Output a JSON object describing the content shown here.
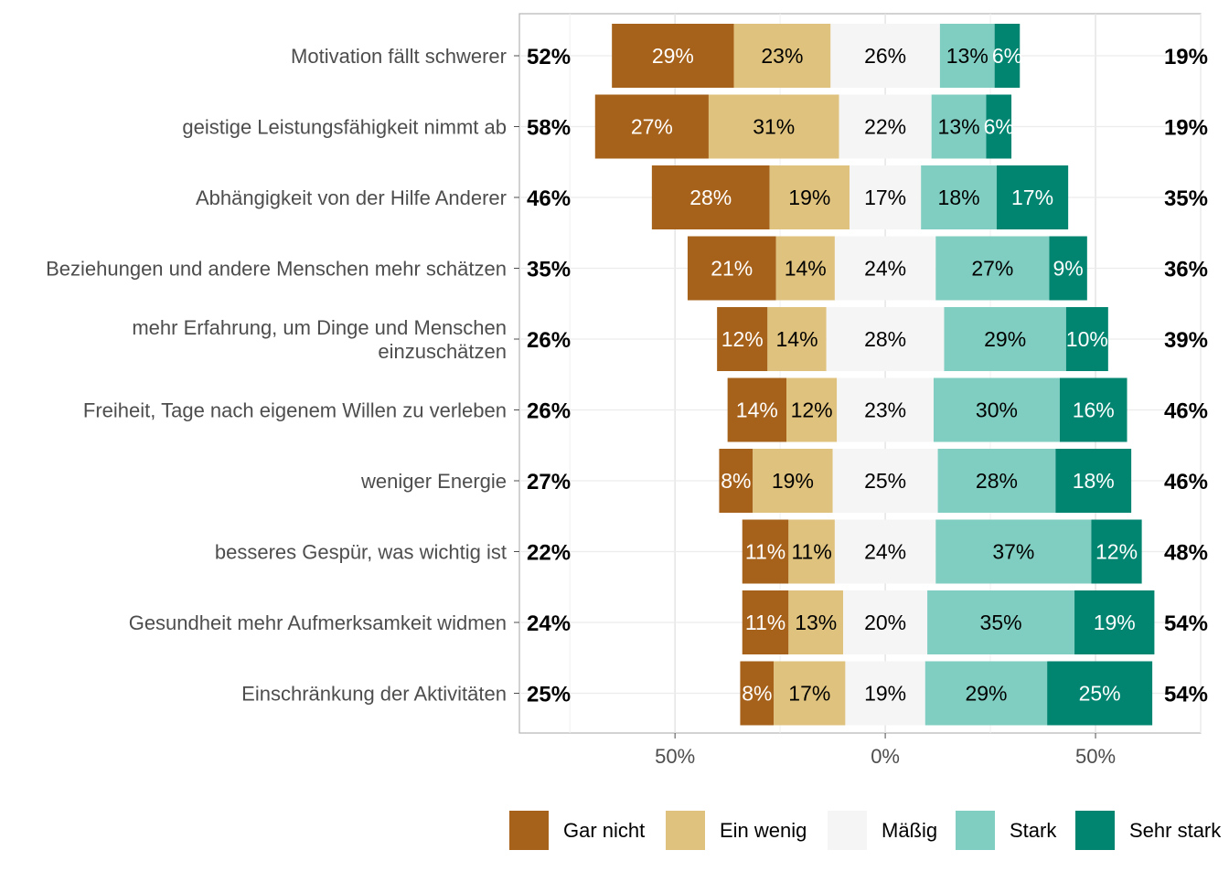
{
  "chart_data": {
    "type": "bar",
    "orientation": "horizontal-diverging-stacked",
    "xlim": [
      -87,
      75
    ],
    "x_ticks": [
      -50,
      0,
      50
    ],
    "x_tick_labels": [
      "50%",
      "0%",
      "50%"
    ],
    "grid": true,
    "legend_position": "bottom",
    "series": [
      {
        "name": "Gar nicht",
        "color": "#A6611A",
        "values": [
          29,
          27,
          28,
          21,
          12,
          14,
          8,
          11,
          11,
          8
        ]
      },
      {
        "name": "Ein wenig",
        "color": "#DFC27D",
        "values": [
          23,
          31,
          19,
          14,
          14,
          12,
          19,
          11,
          13,
          17
        ]
      },
      {
        "name": "Mäßig",
        "color": "#F5F5F5",
        "values": [
          26,
          22,
          17,
          24,
          28,
          23,
          25,
          24,
          20,
          19
        ]
      },
      {
        "name": "Stark",
        "color": "#80CDC1",
        "values": [
          13,
          13,
          18,
          27,
          29,
          30,
          28,
          37,
          35,
          29
        ]
      },
      {
        "name": "Sehr stark",
        "color": "#018571",
        "values": [
          6,
          6,
          17,
          9,
          10,
          16,
          18,
          12,
          19,
          25
        ]
      }
    ],
    "categories": [
      [
        "Motivation fällt schwerer"
      ],
      [
        "geistige Leistungsfähigkeit nimmt ab"
      ],
      [
        "Abhängigkeit von der Hilfe Anderer"
      ],
      [
        "Beziehungen und andere Menschen mehr schätzen"
      ],
      [
        "mehr Erfahrung, um Dinge und Menschen",
        "einzuschätzen"
      ],
      [
        "Freiheit, Tage nach eigenem Willen zu verleben"
      ],
      [
        "weniger Energie"
      ],
      [
        "besseres Gespür, was wichtig ist"
      ],
      [
        "Gesundheit mehr Aufmerksamkeit widmen"
      ],
      [
        "Einschränkung der Aktivitäten"
      ]
    ],
    "left_totals": [
      "52%",
      "58%",
      "46%",
      "35%",
      "26%",
      "26%",
      "27%",
      "22%",
      "24%",
      "25%"
    ],
    "right_totals": [
      "19%",
      "19%",
      "35%",
      "36%",
      "39%",
      "46%",
      "46%",
      "48%",
      "54%",
      "54%"
    ]
  }
}
